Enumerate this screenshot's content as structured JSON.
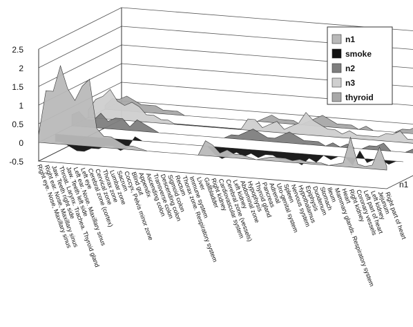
{
  "chart_data": {
    "type": "area",
    "style": "3d-ribbon",
    "ylim": [
      -0.5,
      2.5
    ],
    "y_ticks": [
      "2.5",
      "2",
      "1.5",
      "1",
      "0.5",
      "0",
      "-0.5"
    ],
    "grid": true,
    "legend_position": "top-right",
    "depth_label": "n1",
    "categories": [
      "Right eye. Nose, Maxillary sinus",
      "Right ear. Nose, Maxillary sinus",
      "Jaw. Teeth right side",
      "Throat. Larynx. Trachea. Thyroid gland",
      "Jaw. Teeth left side",
      "Left ear. Nose. Maxillary sinus",
      "Left eye",
      "Cerebral zone (cortex)",
      "Cervical zone",
      "Thorax zone",
      "Lumbar zone",
      "Sacrum",
      "Coccyx, Pelvis minor zone",
      "Blind gut",
      "Appendix",
      "Ascending colon",
      "Transverse colon",
      "Descending colon",
      "Sigmoid colon",
      "Rectum",
      "Thorax zone. Respiratory system",
      "Immune system",
      "Liver",
      "Gallbladder",
      "Right kidney",
      "Cardiovascular system",
      "Cerebral zone (vessels)",
      "Left kidney",
      "Abdominal zone",
      "Hypophysis",
      "Thyroid gland",
      "Pancreas",
      "Adrenal",
      "Uro-genital system",
      "Spleen",
      "Nervous system",
      "Hypothalamus",
      "Epiphysis",
      "Duodenum",
      "Stomach",
      "Ileum",
      "Mammary glands. Respiratory system",
      "Heart",
      "Right kidney",
      "Coronary vessels",
      "Left part of heart",
      "Left kidney",
      "Jejunum",
      "Right part of heart"
    ],
    "series": [
      {
        "name": "n1",
        "color": "#b9b9b9",
        "values": [
          0.2,
          1.4,
          1.4,
          2.1,
          1.5,
          1.2,
          1.6,
          1.8,
          0.5,
          0.3,
          0.3,
          0.2,
          0.1,
          0.1,
          0.05,
          0,
          0,
          0,
          0,
          0,
          0,
          0,
          0,
          0.4,
          0.3,
          0.1,
          0.2,
          0.1,
          0.1,
          0.05,
          0,
          0.05,
          0.1,
          0.1,
          0.1,
          0.05,
          0.1,
          0.05,
          0.05,
          0.05,
          0,
          0.05,
          0.1,
          0.8,
          0.1,
          0.05,
          0.1,
          0.6,
          0.1
        ]
      },
      {
        "name": "smoke",
        "color": "#111111",
        "values": [
          -0.2,
          -0.2,
          -0.3,
          -0.4,
          -0.4,
          -0.3,
          -0.3,
          -0.2,
          -0.2,
          -0.3,
          -0.2,
          0.1,
          0,
          0,
          0,
          0,
          0,
          0,
          0,
          0,
          0,
          0,
          -0.2,
          -0.3,
          -0.2,
          -0.1,
          -0.2,
          -0.1,
          -0.2,
          -0.1,
          -0.1,
          -0.2,
          -0.2,
          -0.2,
          -0.3,
          -0.1,
          -0.2,
          0,
          -0.1,
          0,
          0,
          -0.2,
          0.2,
          -0.1,
          0,
          0,
          -0.1,
          0,
          0
        ]
      },
      {
        "name": "n2",
        "color": "#7e7e7e",
        "values": [
          0.3,
          0.4,
          0.2,
          0.2,
          0.4,
          0.2,
          0.3,
          0.3,
          0.1,
          0.3,
          0.2,
          0.1,
          0,
          0,
          0,
          0,
          0,
          0,
          0,
          0,
          0,
          0,
          0.1,
          0.1,
          0.2,
          0.3,
          0.2,
          0.1,
          0.1,
          0.2,
          0.3,
          0.2,
          0.1,
          0.1,
          0.1,
          0,
          0.1,
          0,
          0.1,
          0,
          0,
          0.1,
          0.1,
          0.2,
          0,
          0,
          0,
          0.1,
          0
        ]
      },
      {
        "name": "n3",
        "color": "#cfcfcf",
        "values": [
          0.2,
          0.5,
          0.6,
          0.8,
          0.5,
          0.4,
          0.5,
          0.4,
          0.2,
          0.2,
          0.1,
          0.1,
          0,
          0,
          0,
          0,
          0,
          0,
          0,
          0,
          0,
          0,
          0.3,
          0.3,
          0.1,
          0.2,
          0.3,
          0.1,
          0.2,
          0.3,
          0.6,
          0.4,
          0.3,
          0.2,
          0.2,
          0.1,
          0.2,
          0.1,
          0.1,
          0.1,
          0.1,
          0.2,
          0.2,
          0.3,
          0.1,
          0.1,
          0.2,
          0.2,
          0.1
        ]
      },
      {
        "name": "thyroid",
        "color": "#a8a8a8",
        "values": [
          0.1,
          0.3,
          0.3,
          0.4,
          0.3,
          0.2,
          0.2,
          0.2,
          0.1,
          0.1,
          0.1,
          0,
          0,
          0,
          0,
          0,
          0,
          0,
          0,
          0,
          0,
          0,
          0.1,
          0.2,
          0.1,
          0.1,
          0.1,
          0,
          0.1,
          0.2,
          0.3,
          0.2,
          0.1,
          0.1,
          0.1,
          0,
          0.1,
          0,
          0,
          0,
          0,
          0.1,
          0.1,
          0.2,
          0,
          0,
          0.1,
          0.1,
          0
        ]
      }
    ]
  }
}
